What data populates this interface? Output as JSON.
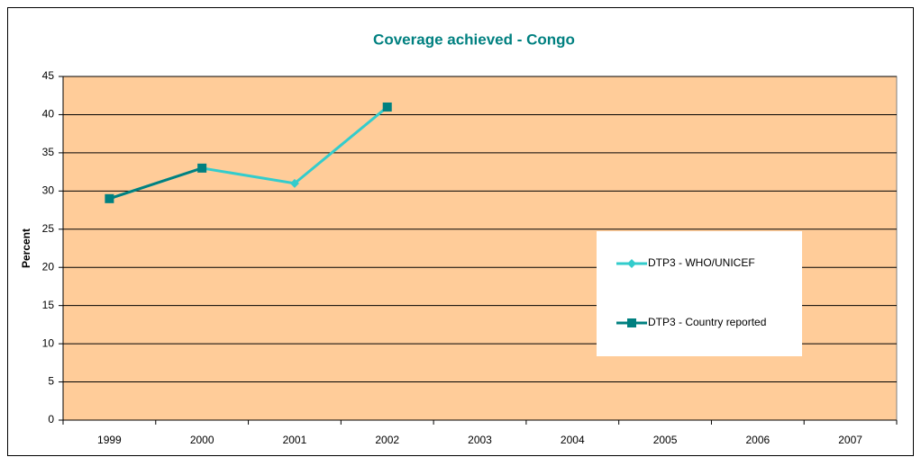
{
  "chart_data": {
    "type": "line",
    "title": "Coverage achieved - Congo",
    "y_label": "Percent",
    "categories": [
      "1999",
      "2000",
      "2001",
      "2002",
      "2003",
      "2004",
      "2005",
      "2006",
      "2007"
    ],
    "series": [
      {
        "name": "DTP3 - WHO/UNICEF",
        "color": "#33CCCC",
        "marker": "diamond",
        "values": [
          29,
          33,
          31,
          41,
          null,
          null,
          null,
          null,
          null
        ]
      },
      {
        "name": "DTP3 - Country reported",
        "color": "#008080",
        "marker": "square",
        "values": [
          29,
          33,
          null,
          41,
          null,
          null,
          null,
          null,
          null
        ]
      }
    ],
    "ylim": [
      0,
      45
    ],
    "yticks": [
      0,
      5,
      10,
      15,
      20,
      25,
      30,
      35,
      40,
      45
    ],
    "grid": true,
    "plot_color": "#FFCC99"
  }
}
